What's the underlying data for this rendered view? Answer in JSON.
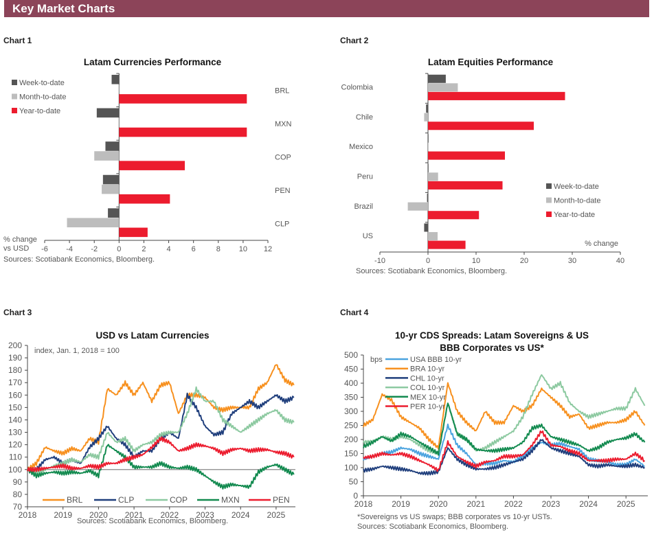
{
  "header": {
    "title": "Key Market Charts"
  },
  "chart_labels": [
    "Chart 1",
    "Chart 2",
    "Chart 3",
    "Chart 4"
  ],
  "chart_data": [
    {
      "type": "bar",
      "orientation": "horizontal",
      "title": "Latam Currencies Performance",
      "xlabel": "% change vs USD",
      "xlim": [
        -6,
        12
      ],
      "xticks": [
        -6,
        -4,
        -2,
        0,
        2,
        4,
        6,
        8,
        10,
        12
      ],
      "legend_position": "top-left",
      "source": "Sources: Scotiabank Economics, Bloomberg.",
      "categories": [
        "BRL",
        "MXN",
        "COP",
        "PEN",
        "CLP"
      ],
      "series": [
        {
          "name": "Week-to-date",
          "color": "#555555",
          "values": [
            -0.6,
            -1.8,
            -1.1,
            -1.3,
            -0.9
          ]
        },
        {
          "name": "Month-to-date",
          "color": "#bdbdbd",
          "values": [
            0,
            0,
            -2.0,
            -1.4,
            -4.2
          ]
        },
        {
          "name": "Year-to-date",
          "color": "#ec1c2e",
          "values": [
            10.3,
            10.3,
            5.3,
            4.1,
            2.3
          ]
        }
      ]
    },
    {
      "type": "bar",
      "orientation": "horizontal",
      "title": "Latam Equities Performance",
      "xlabel": "% change",
      "xlim": [
        -10,
        40
      ],
      "xticks": [
        -10,
        0,
        10,
        20,
        30,
        40
      ],
      "legend_position": "bottom-right",
      "source": "Sources: Scotiabank Economics, Bloomberg.",
      "categories": [
        "Colombia",
        "Chile",
        "Mexico",
        "Peru",
        "Brazil",
        "US"
      ],
      "series": [
        {
          "name": "Week-to-date",
          "color": "#555555",
          "values": [
            3.7,
            -0.4,
            0,
            0.1,
            -0.2,
            -0.8
          ]
        },
        {
          "name": "Month-to-date",
          "color": "#bdbdbd",
          "values": [
            6.2,
            -0.8,
            0.1,
            2.1,
            -4.2,
            2.0
          ]
        },
        {
          "name": "Year-to-date",
          "color": "#ec1c2e",
          "values": [
            28.5,
            22.0,
            16.0,
            15.5,
            10.6,
            7.8
          ]
        }
      ]
    },
    {
      "type": "line",
      "title": "USD vs Latam Currencies",
      "ylabel": "index, Jan. 1, 2018 = 100",
      "ylim": [
        70,
        200
      ],
      "yticks": [
        70,
        80,
        90,
        100,
        110,
        120,
        130,
        140,
        150,
        160,
        170,
        180,
        190,
        200
      ],
      "xticks": [
        "2018",
        "2019",
        "2020",
        "2021",
        "2022",
        "2023",
        "2024",
        "2025"
      ],
      "reference_line": 100,
      "legend_position": "bottom",
      "source": "Sources: Scotiabank Economics, Bloomberg.",
      "x": [
        "2018-01",
        "2018-04",
        "2018-07",
        "2018-10",
        "2019-01",
        "2019-04",
        "2019-07",
        "2019-10",
        "2020-01",
        "2020-04",
        "2020-07",
        "2020-10",
        "2021-01",
        "2021-04",
        "2021-07",
        "2021-10",
        "2022-01",
        "2022-04",
        "2022-07",
        "2022-10",
        "2023-01",
        "2023-04",
        "2023-07",
        "2023-10",
        "2024-01",
        "2024-04",
        "2024-07",
        "2024-10",
        "2025-01",
        "2025-04",
        "2025-07"
      ],
      "series": [
        {
          "name": "BRL",
          "color": "#f7901e",
          "values": [
            100,
            105,
            118,
            115,
            113,
            117,
            115,
            125,
            122,
            165,
            160,
            170,
            160,
            170,
            155,
            168,
            170,
            145,
            160,
            160,
            158,
            150,
            148,
            150,
            150,
            150,
            165,
            170,
            185,
            172,
            168
          ]
        },
        {
          "name": "CLP",
          "color": "#1f3e7c",
          "values": [
            100,
            100,
            108,
            110,
            105,
            108,
            105,
            118,
            125,
            135,
            125,
            120,
            110,
            115,
            115,
            125,
            130,
            125,
            160,
            150,
            135,
            128,
            130,
            145,
            150,
            155,
            150,
            155,
            160,
            155,
            158
          ]
        },
        {
          "name": "COP",
          "color": "#8cc9a0",
          "values": [
            100,
            97,
            100,
            103,
            105,
            108,
            106,
            112,
            110,
            130,
            122,
            125,
            115,
            120,
            122,
            128,
            130,
            130,
            145,
            165,
            155,
            155,
            140,
            135,
            130,
            135,
            140,
            145,
            148,
            140,
            138
          ]
        },
        {
          "name": "MXN",
          "color": "#128a4f",
          "values": [
            100,
            95,
            97,
            98,
            97,
            98,
            97,
            99,
            95,
            120,
            115,
            110,
            102,
            102,
            102,
            105,
            102,
            101,
            102,
            100,
            95,
            90,
            86,
            88,
            87,
            86,
            98,
            102,
            104,
            100,
            96
          ]
        },
        {
          "name": "PEN",
          "color": "#ec1c2e",
          "values": [
            100,
            100,
            101,
            102,
            103,
            101,
            101,
            103,
            102,
            105,
            105,
            108,
            110,
            112,
            118,
            125,
            122,
            115,
            117,
            120,
            119,
            117,
            113,
            116,
            117,
            115,
            116,
            116,
            114,
            113,
            110
          ]
        }
      ]
    },
    {
      "type": "line",
      "title": "10-yr CDS Spreads: Latam Sovereigns & US BBB Corporates vs US*",
      "ylabel": "bps",
      "ylim": [
        0,
        500
      ],
      "yticks": [
        0,
        50,
        100,
        150,
        200,
        250,
        300,
        350,
        400,
        450,
        500
      ],
      "xticks": [
        "2018",
        "2019",
        "2020",
        "2021",
        "2022",
        "2023",
        "2024",
        "2025"
      ],
      "legend_position": "top-left",
      "footnote": "*Sovereigns vs US swaps; BBB corporates vs 10-yr USTs.",
      "source": "Sources: Scotiabank Economics, Bloomberg.",
      "x": [
        "2018-01",
        "2018-04",
        "2018-07",
        "2018-10",
        "2019-01",
        "2019-04",
        "2019-07",
        "2019-10",
        "2020-01",
        "2020-04",
        "2020-07",
        "2020-10",
        "2021-01",
        "2021-04",
        "2021-07",
        "2021-10",
        "2022-01",
        "2022-04",
        "2022-07",
        "2022-10",
        "2023-01",
        "2023-04",
        "2023-07",
        "2023-10",
        "2024-01",
        "2024-04",
        "2024-07",
        "2024-10",
        "2025-01",
        "2025-04",
        "2025-07"
      ],
      "series": [
        {
          "name": "USA BBB 10-yr",
          "color": "#4aa3df",
          "values": [
            130,
            140,
            150,
            155,
            170,
            165,
            150,
            140,
            130,
            250,
            180,
            150,
            110,
            115,
            115,
            125,
            120,
            140,
            170,
            190,
            180,
            185,
            175,
            165,
            130,
            125,
            120,
            110,
            110,
            130,
            105
          ]
        },
        {
          "name": "BRA 10-yr",
          "color": "#f7901e",
          "values": [
            250,
            270,
            360,
            340,
            280,
            260,
            240,
            200,
            170,
            400,
            300,
            260,
            230,
            300,
            260,
            260,
            320,
            300,
            320,
            380,
            350,
            320,
            280,
            290,
            240,
            250,
            260,
            260,
            270,
            300,
            250
          ]
        },
        {
          "name": "CHL 10-yr",
          "color": "#1f3e7c",
          "values": [
            90,
            95,
            105,
            100,
            95,
            90,
            80,
            80,
            85,
            170,
            130,
            110,
            95,
            95,
            100,
            110,
            120,
            130,
            160,
            200,
            170,
            160,
            150,
            140,
            110,
            105,
            110,
            105,
            105,
            110,
            100
          ]
        },
        {
          "name": "COL 10-yr",
          "color": "#8cc9a0",
          "values": [
            190,
            195,
            210,
            200,
            210,
            200,
            180,
            160,
            150,
            330,
            220,
            200,
            160,
            170,
            190,
            210,
            230,
            280,
            360,
            430,
            380,
            400,
            330,
            300,
            280,
            290,
            300,
            310,
            310,
            380,
            320
          ]
        },
        {
          "name": "MEX 10-yr",
          "color": "#128a4f",
          "values": [
            175,
            190,
            210,
            195,
            220,
            210,
            190,
            170,
            150,
            330,
            220,
            200,
            165,
            160,
            160,
            165,
            170,
            190,
            240,
            250,
            210,
            200,
            190,
            180,
            160,
            170,
            190,
            200,
            205,
            220,
            190
          ]
        },
        {
          "name": "PER 10-yr",
          "color": "#ec1c2e",
          "values": [
            135,
            140,
            150,
            145,
            150,
            140,
            125,
            110,
            90,
            190,
            140,
            120,
            105,
            120,
            125,
            140,
            140,
            145,
            180,
            230,
            180,
            175,
            160,
            150,
            125,
            125,
            125,
            130,
            130,
            150,
            125
          ]
        }
      ]
    }
  ]
}
